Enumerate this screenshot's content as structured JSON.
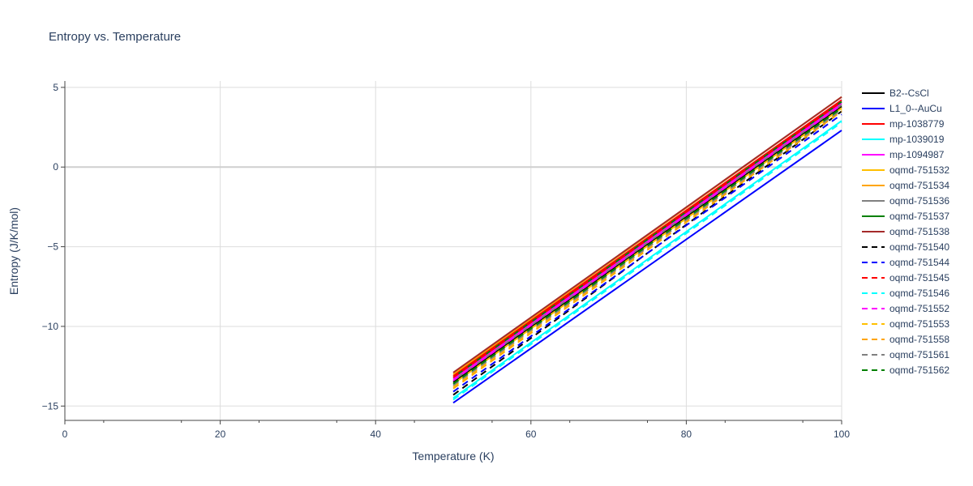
{
  "chart_data": {
    "type": "line",
    "title": "Entropy vs. Temperature",
    "xlabel": "Temperature (K)",
    "ylabel": "Entropy (J/K/mol)",
    "xlim": [
      0,
      100
    ],
    "ylim": [
      -15.9,
      5.4
    ],
    "xticks": [
      0,
      20,
      40,
      60,
      80,
      100
    ],
    "yticks": [
      -15,
      -10,
      -5,
      0,
      5
    ],
    "grid": true,
    "legend_position": "right",
    "series": [
      {
        "name": "B2--CsCl",
        "color": "#000000",
        "dash": "solid",
        "x": [
          50,
          100
        ],
        "y": [
          -13.5,
          3.8
        ]
      },
      {
        "name": "L1_0--AuCu",
        "color": "#0000ff",
        "dash": "solid",
        "x": [
          50,
          100
        ],
        "y": [
          -14.8,
          2.3
        ]
      },
      {
        "name": "mp-1038779",
        "color": "#ff0000",
        "dash": "solid",
        "x": [
          50,
          100
        ],
        "y": [
          -13.1,
          4.2
        ]
      },
      {
        "name": "mp-1039019",
        "color": "#00ffff",
        "dash": "solid",
        "x": [
          50,
          100
        ],
        "y": [
          -14.5,
          2.9
        ]
      },
      {
        "name": "mp-1094987",
        "color": "#ff00ff",
        "dash": "solid",
        "x": [
          50,
          100
        ],
        "y": [
          -13.3,
          4.0
        ]
      },
      {
        "name": "oqmd-751532",
        "color": "#ffbf00",
        "dash": "solid",
        "x": [
          50,
          100
        ],
        "y": [
          -13.6,
          3.7
        ]
      },
      {
        "name": "oqmd-751534",
        "color": "#ffa500",
        "dash": "solid",
        "x": [
          50,
          100
        ],
        "y": [
          -13.0,
          4.4
        ]
      },
      {
        "name": "oqmd-751536",
        "color": "#808080",
        "dash": "solid",
        "x": [
          50,
          100
        ],
        "y": [
          -13.4,
          3.9
        ]
      },
      {
        "name": "oqmd-751537",
        "color": "#008000",
        "dash": "solid",
        "x": [
          50,
          100
        ],
        "y": [
          -13.2,
          4.1
        ]
      },
      {
        "name": "oqmd-751538",
        "color": "#a52a2a",
        "dash": "solid",
        "x": [
          50,
          100
        ],
        "y": [
          -12.9,
          4.4
        ]
      },
      {
        "name": "oqmd-751540",
        "color": "#000000",
        "dash": "dash",
        "x": [
          50,
          100
        ],
        "y": [
          -14.3,
          3.5
        ]
      },
      {
        "name": "oqmd-751544",
        "color": "#0000ff",
        "dash": "dash",
        "x": [
          50,
          100
        ],
        "y": [
          -14.1,
          3.3
        ]
      },
      {
        "name": "oqmd-751545",
        "color": "#ff0000",
        "dash": "dash",
        "x": [
          50,
          100
        ],
        "y": [
          -13.2,
          4.1
        ]
      },
      {
        "name": "oqmd-751546",
        "color": "#00ffff",
        "dash": "dash",
        "x": [
          50,
          100
        ],
        "y": [
          -14.6,
          2.8
        ]
      },
      {
        "name": "oqmd-751552",
        "color": "#ff00ff",
        "dash": "dash",
        "x": [
          50,
          100
        ],
        "y": [
          -13.4,
          3.9
        ]
      },
      {
        "name": "oqmd-751553",
        "color": "#ffbf00",
        "dash": "dash",
        "x": [
          50,
          100
        ],
        "y": [
          -13.8,
          3.6
        ]
      },
      {
        "name": "oqmd-751558",
        "color": "#ffa500",
        "dash": "dash",
        "x": [
          50,
          100
        ],
        "y": [
          -13.9,
          3.5
        ]
      },
      {
        "name": "oqmd-751561",
        "color": "#808080",
        "dash": "dash",
        "x": [
          50,
          100
        ],
        "y": [
          -13.7,
          3.6
        ]
      },
      {
        "name": "oqmd-751562",
        "color": "#008000",
        "dash": "dash",
        "x": [
          50,
          100
        ],
        "y": [
          -13.6,
          3.7
        ]
      }
    ]
  }
}
